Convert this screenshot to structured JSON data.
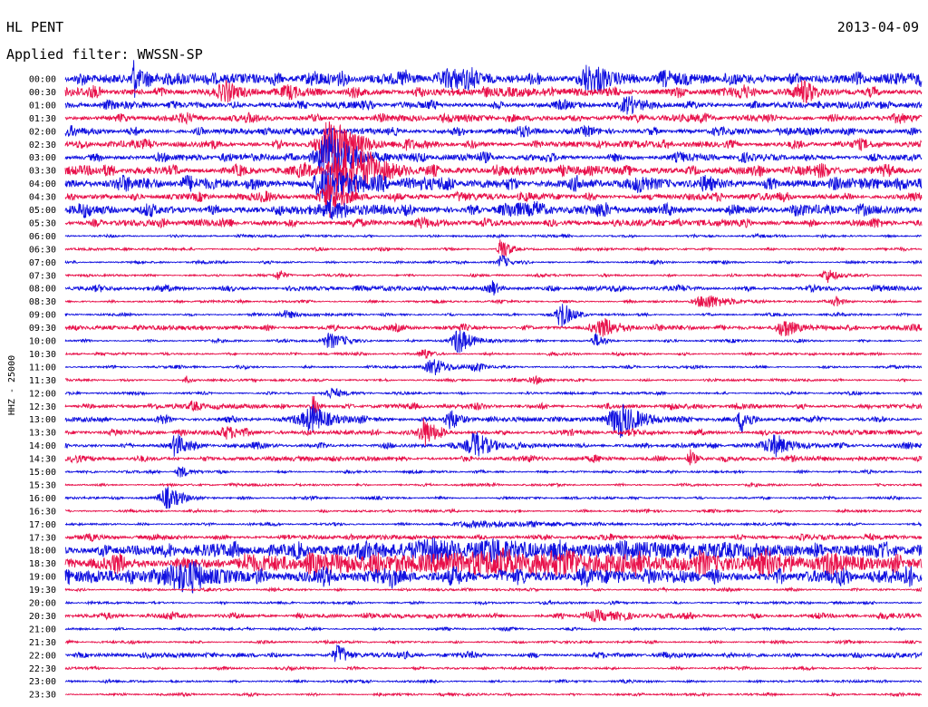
{
  "header": {
    "station": "HL PENT",
    "date": "2013-04-09",
    "filter": "Applied filter: WWSSN-SP"
  },
  "chart_data": {
    "type": "helicorder",
    "channel_label": "HHZ - 25000",
    "row_labels": [
      "00:00",
      "00:30",
      "01:00",
      "01:30",
      "02:00",
      "02:30",
      "03:00",
      "03:30",
      "04:00",
      "04:30",
      "05:00",
      "05:30",
      "06:00",
      "06:30",
      "07:00",
      "07:30",
      "08:00",
      "08:30",
      "09:00",
      "09:30",
      "10:00",
      "10:30",
      "11:00",
      "11:30",
      "12:00",
      "12:30",
      "13:00",
      "13:30",
      "14:00",
      "14:30",
      "15:00",
      "15:30",
      "16:00",
      "16:30",
      "17:00",
      "17:30",
      "18:00",
      "18:30",
      "19:00",
      "19:30",
      "20:00",
      "20:30",
      "21:00",
      "21:30",
      "22:00",
      "22:30",
      "23:00",
      "23:30"
    ],
    "trace_colors": [
      "#1010e0",
      "#e8104a"
    ],
    "noise_level": [
      5,
      4,
      3,
      3,
      3,
      3,
      3,
      4,
      5,
      3,
      4,
      3,
      1,
      1,
      1,
      1,
      2,
      1,
      1,
      2,
      1,
      1,
      1,
      1,
      1,
      2,
      2,
      2,
      2,
      2,
      1,
      1,
      1,
      1,
      1,
      2,
      5,
      6,
      6,
      1,
      1,
      2,
      1,
      1,
      2,
      1,
      1,
      1
    ],
    "events": [
      {
        "row": 0,
        "pos": 0.08,
        "amp": 24,
        "width": 0.006
      },
      {
        "row": 0,
        "pos": 0.61,
        "amp": 14,
        "width": 0.02
      },
      {
        "row": 0,
        "pos": 0.45,
        "amp": 7,
        "width": 0.03
      },
      {
        "row": 0,
        "pos": 0.29,
        "amp": 7,
        "width": 0.02
      },
      {
        "row": 1,
        "pos": 0.86,
        "amp": 7,
        "width": 0.015
      },
      {
        "row": 1,
        "pos": 0.19,
        "amp": 5,
        "width": 0.02
      },
      {
        "row": 2,
        "pos": 0.66,
        "amp": 5,
        "width": 0.02
      },
      {
        "row": 5,
        "pos": 0.31,
        "amp": 26,
        "width": 0.03
      },
      {
        "row": 6,
        "pos": 0.31,
        "amp": 30,
        "width": 0.03
      },
      {
        "row": 7,
        "pos": 0.33,
        "amp": 32,
        "width": 0.035
      },
      {
        "row": 8,
        "pos": 0.31,
        "amp": 18,
        "width": 0.03
      },
      {
        "row": 9,
        "pos": 0.31,
        "amp": 20,
        "width": 0.02
      },
      {
        "row": 10,
        "pos": 0.31,
        "amp": 8,
        "width": 0.02
      },
      {
        "row": 10,
        "pos": 0.52,
        "amp": 6,
        "width": 0.03
      },
      {
        "row": 13,
        "pos": 0.51,
        "amp": 16,
        "width": 0.008
      },
      {
        "row": 14,
        "pos": 0.51,
        "amp": 9,
        "width": 0.008
      },
      {
        "row": 15,
        "pos": 0.89,
        "amp": 8,
        "width": 0.012
      },
      {
        "row": 15,
        "pos": 0.25,
        "amp": 5,
        "width": 0.008
      },
      {
        "row": 16,
        "pos": 0.5,
        "amp": 8,
        "width": 0.008
      },
      {
        "row": 17,
        "pos": 0.75,
        "amp": 8,
        "width": 0.025
      },
      {
        "row": 17,
        "pos": 0.9,
        "amp": 6,
        "width": 0.01
      },
      {
        "row": 18,
        "pos": 0.58,
        "amp": 16,
        "width": 0.012
      },
      {
        "row": 18,
        "pos": 0.26,
        "amp": 4,
        "width": 0.02
      },
      {
        "row": 19,
        "pos": 0.63,
        "amp": 9,
        "width": 0.02
      },
      {
        "row": 19,
        "pos": 0.84,
        "amp": 9,
        "width": 0.02
      },
      {
        "row": 20,
        "pos": 0.46,
        "amp": 16,
        "width": 0.015
      },
      {
        "row": 20,
        "pos": 0.31,
        "amp": 9,
        "width": 0.02
      },
      {
        "row": 20,
        "pos": 0.62,
        "amp": 8,
        "width": 0.01
      },
      {
        "row": 21,
        "pos": 0.42,
        "amp": 5,
        "width": 0.012
      },
      {
        "row": 22,
        "pos": 0.43,
        "amp": 9,
        "width": 0.02
      },
      {
        "row": 22,
        "pos": 0.48,
        "amp": 5,
        "width": 0.012
      },
      {
        "row": 23,
        "pos": 0.14,
        "amp": 6,
        "width": 0.004
      },
      {
        "row": 23,
        "pos": 0.55,
        "amp": 4,
        "width": 0.015
      },
      {
        "row": 24,
        "pos": 0.31,
        "amp": 5,
        "width": 0.015
      },
      {
        "row": 25,
        "pos": 0.29,
        "amp": 12,
        "width": 0.006
      },
      {
        "row": 25,
        "pos": 0.15,
        "amp": 5,
        "width": 0.01
      },
      {
        "row": 26,
        "pos": 0.29,
        "amp": 14,
        "width": 0.025
      },
      {
        "row": 26,
        "pos": 0.45,
        "amp": 12,
        "width": 0.012
      },
      {
        "row": 26,
        "pos": 0.65,
        "amp": 18,
        "width": 0.03
      },
      {
        "row": 26,
        "pos": 0.79,
        "amp": 14,
        "width": 0.008
      },
      {
        "row": 26,
        "pos": 0.11,
        "amp": 6,
        "width": 0.008
      },
      {
        "row": 27,
        "pos": 0.42,
        "amp": 16,
        "width": 0.012
      },
      {
        "row": 27,
        "pos": 0.19,
        "amp": 7,
        "width": 0.02
      },
      {
        "row": 28,
        "pos": 0.13,
        "amp": 14,
        "width": 0.01
      },
      {
        "row": 28,
        "pos": 0.48,
        "amp": 14,
        "width": 0.02
      },
      {
        "row": 28,
        "pos": 0.83,
        "amp": 9,
        "width": 0.03
      },
      {
        "row": 29,
        "pos": 0.73,
        "amp": 10,
        "width": 0.008
      },
      {
        "row": 30,
        "pos": 0.135,
        "amp": 7,
        "width": 0.01
      },
      {
        "row": 32,
        "pos": 0.12,
        "amp": 12,
        "width": 0.02
      },
      {
        "row": 34,
        "pos": 0.5,
        "amp": 3,
        "width": 0.1
      },
      {
        "row": 36,
        "pos": 0.5,
        "amp": 6,
        "width": 0.4
      },
      {
        "row": 37,
        "pos": 0.5,
        "amp": 8,
        "width": 0.4
      },
      {
        "row": 38,
        "pos": 0.14,
        "amp": 12,
        "width": 0.04
      },
      {
        "row": 38,
        "pos": 0.51,
        "amp": 6,
        "width": 0.01
      },
      {
        "row": 41,
        "pos": 0.62,
        "amp": 5,
        "width": 0.03
      },
      {
        "row": 44,
        "pos": 0.32,
        "amp": 9,
        "width": 0.015
      }
    ]
  }
}
